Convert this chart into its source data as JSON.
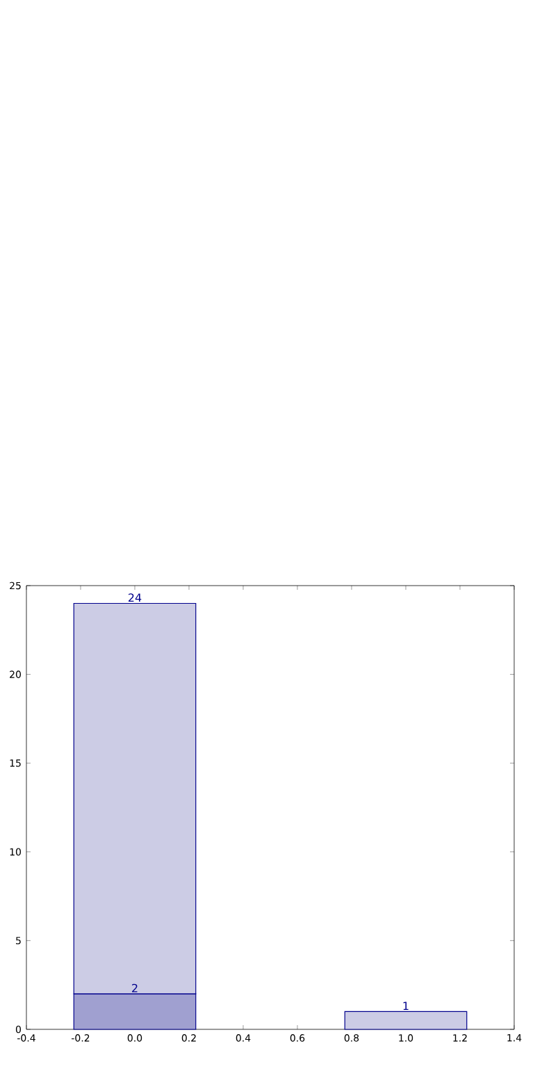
{
  "chart_data": {
    "type": "bar",
    "x": [
      0,
      1
    ],
    "stacked": true,
    "series": [
      {
        "color": "#a0a0d0",
        "values": [
          2,
          null
        ],
        "value_labels": [
          "2",
          null
        ]
      },
      {
        "color": "#ccccE5",
        "values": [
          22,
          1
        ]
      }
    ],
    "totals": [
      "24",
      "1"
    ],
    "xlim": [
      -0.4,
      1.4
    ],
    "xticks": [
      -0.4,
      -0.2,
      {
        "value": 0,
        "label": "0.0"
      },
      0.2,
      0.4,
      0.6,
      0.8,
      {
        "value": 1,
        "label": "1.0"
      },
      1.2,
      1.4
    ],
    "ylim": [
      0,
      25
    ],
    "yticks": [
      0,
      5,
      10,
      15,
      20,
      25
    ]
  }
}
